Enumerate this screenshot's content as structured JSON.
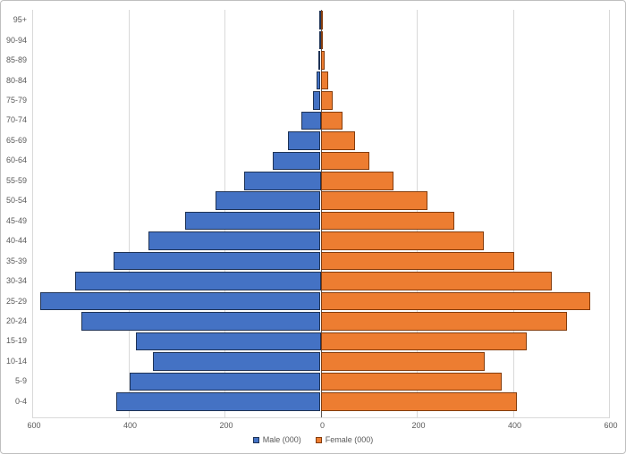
{
  "chart_data": {
    "type": "bar",
    "subtype": "population-pyramid",
    "orientation": "horizontal",
    "title": "",
    "categories_top_to_bottom": [
      "95+",
      "90-94",
      "85-89",
      "80-84",
      "75-79",
      "70-74",
      "65-69",
      "60-64",
      "55-59",
      "50-54",
      "45-49",
      "40-44",
      "35-39",
      "30-34",
      "25-29",
      "20-24",
      "15-19",
      "10-14",
      "5-9",
      "0-4"
    ],
    "series": [
      {
        "name": "Male (000)",
        "side": "left",
        "fill_color": "#4472C4",
        "border_color": "#1F3356",
        "values": [
          1,
          1,
          4,
          9,
          16,
          40,
          67,
          99,
          160,
          219,
          281,
          359,
          431,
          510,
          584,
          497,
          385,
          349,
          398,
          426
        ]
      },
      {
        "name": "Female (000)",
        "side": "right",
        "fill_color": "#ED7D31",
        "border_color": "#843C0C",
        "values": [
          1,
          3,
          8,
          16,
          25,
          45,
          71,
          102,
          152,
          222,
          279,
          339,
          403,
          480,
          560,
          512,
          429,
          342,
          377,
          408
        ]
      }
    ],
    "x_axis": {
      "tick_labels": [
        "600",
        "400",
        "200",
        "0",
        "200",
        "400",
        "600"
      ],
      "tick_values": [
        -600,
        -400,
        -200,
        0,
        200,
        400,
        600
      ],
      "max_abs": 600,
      "grid": true,
      "gridline_color": "#D9D9D9",
      "center_axis_color": "#595959"
    },
    "legend_position": "bottom",
    "text_color": "#595959"
  }
}
